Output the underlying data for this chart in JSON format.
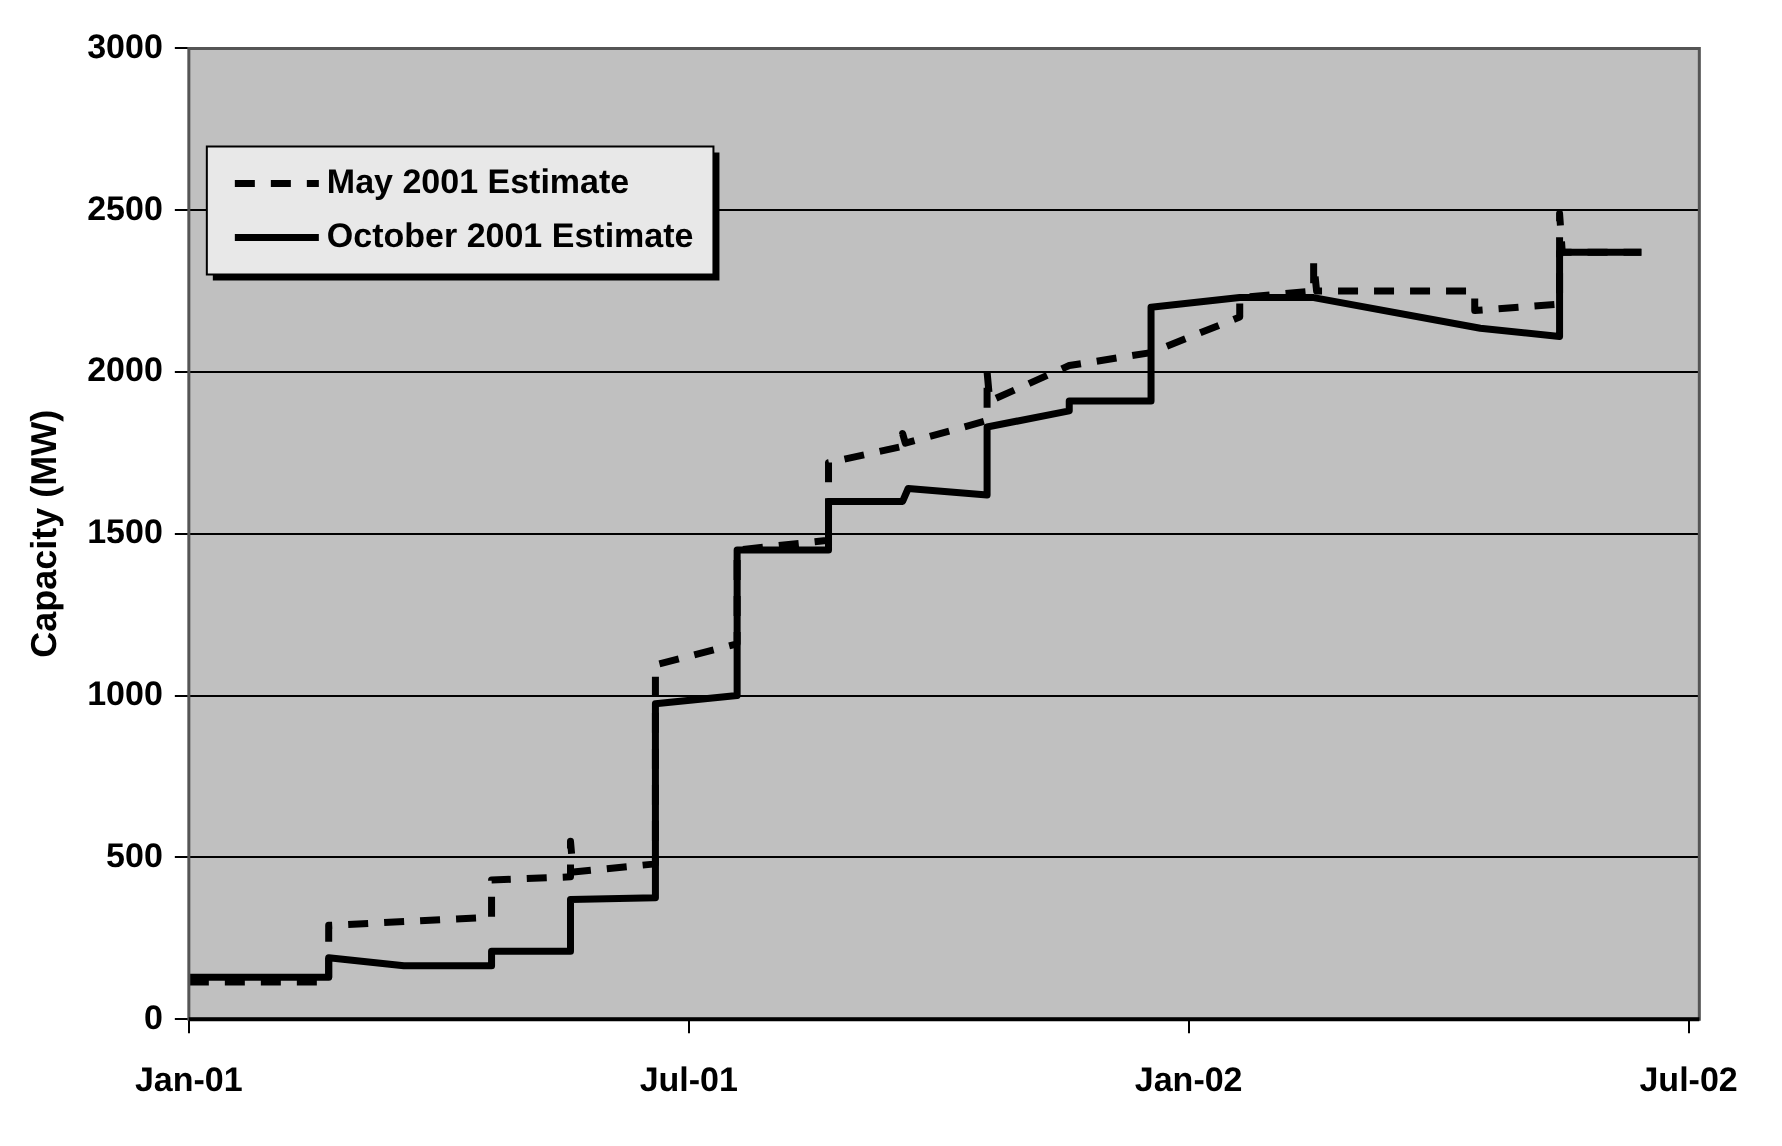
{
  "chart_data": {
    "type": "line",
    "ylabel": "Capacity (MW)",
    "xlim": [
      "2001-01-01",
      "2002-07-05"
    ],
    "xticks": [
      {
        "value": "2001-01-01",
        "label": "Jan-01"
      },
      {
        "value": "2001-07-01",
        "label": "Jul-01"
      },
      {
        "value": "2002-01-01",
        "label": "Jan-02"
      },
      {
        "value": "2002-07-01",
        "label": "Jul-02"
      }
    ],
    "ylim": [
      0,
      3000
    ],
    "yticks": [
      0,
      500,
      1000,
      1500,
      2000,
      2500,
      3000
    ],
    "grid": "y",
    "legend": "top left",
    "marker": "none",
    "series": [
      {
        "name": "May 2001 Estimate",
        "color": "#000000",
        "line_style": "dashed",
        "x": [
          "2001-01-01",
          "2001-02-20",
          "2001-02-20",
          "2001-04-20",
          "2001-04-20",
          "2001-05-19",
          "2001-05-19",
          "2001-05-20",
          "2001-06-19",
          "2001-06-19",
          "2001-07-19",
          "2001-07-19",
          "2001-08-22",
          "2001-08-22",
          "2001-09-18",
          "2001-09-18",
          "2001-09-19",
          "2001-10-19",
          "2001-10-19",
          "2001-10-20",
          "2001-11-18",
          "2001-12-18",
          "2002-01-20",
          "2002-01-20",
          "2002-02-15",
          "2002-02-15",
          "2002-02-16",
          "2002-04-14",
          "2002-04-14",
          "2002-05-15",
          "2002-05-15",
          "2002-05-16",
          "2002-06-14"
        ],
        "values": [
          115,
          115,
          290,
          315,
          430,
          440,
          550,
          455,
          480,
          1095,
          1160,
          1450,
          1480,
          1720,
          1770,
          1810,
          1780,
          1850,
          2000,
          1910,
          2020,
          2060,
          2170,
          2230,
          2250,
          2340,
          2250,
          2250,
          2190,
          2210,
          2490,
          2370,
          2370
        ]
      },
      {
        "name": "October 2001 Estimate",
        "color": "#000000",
        "line_style": "solid",
        "x": [
          "2001-01-01",
          "2001-02-20",
          "2001-02-20",
          "2001-03-19",
          "2001-04-20",
          "2001-04-20",
          "2001-05-19",
          "2001-05-19",
          "2001-06-19",
          "2001-06-19",
          "2001-07-19",
          "2001-07-19",
          "2001-08-22",
          "2001-08-22",
          "2001-09-18",
          "2001-09-20",
          "2001-10-19",
          "2001-10-19",
          "2001-11-18",
          "2001-11-18",
          "2001-12-18",
          "2001-12-18",
          "2002-01-20",
          "2002-02-15",
          "2002-04-16",
          "2002-05-15",
          "2002-05-15",
          "2002-06-14"
        ],
        "values": [
          130,
          130,
          190,
          165,
          165,
          210,
          210,
          370,
          375,
          975,
          1000,
          1450,
          1450,
          1600,
          1600,
          1640,
          1620,
          1830,
          1880,
          1910,
          1910,
          2200,
          2230,
          2230,
          2135,
          2110,
          2370,
          2370
        ]
      }
    ]
  }
}
